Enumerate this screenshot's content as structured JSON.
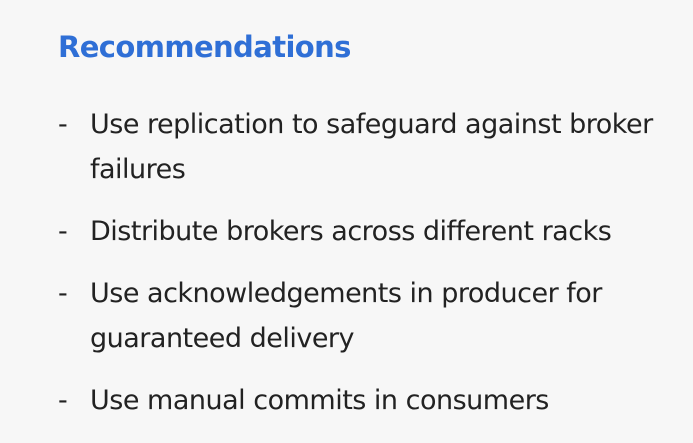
{
  "slide": {
    "title": "Recommendations",
    "bullet_marker": "-",
    "items": [
      {
        "text": "Use replication to safeguard against broker failures"
      },
      {
        "text": "Distribute brokers across different racks"
      },
      {
        "text": "Use acknowledgements in producer for guaranteed delivery"
      },
      {
        "text": "Use manual commits in consumers"
      }
    ]
  },
  "colors": {
    "background": "#f7f7f7",
    "title": "#2f6fd6",
    "body_text": "#222222"
  }
}
